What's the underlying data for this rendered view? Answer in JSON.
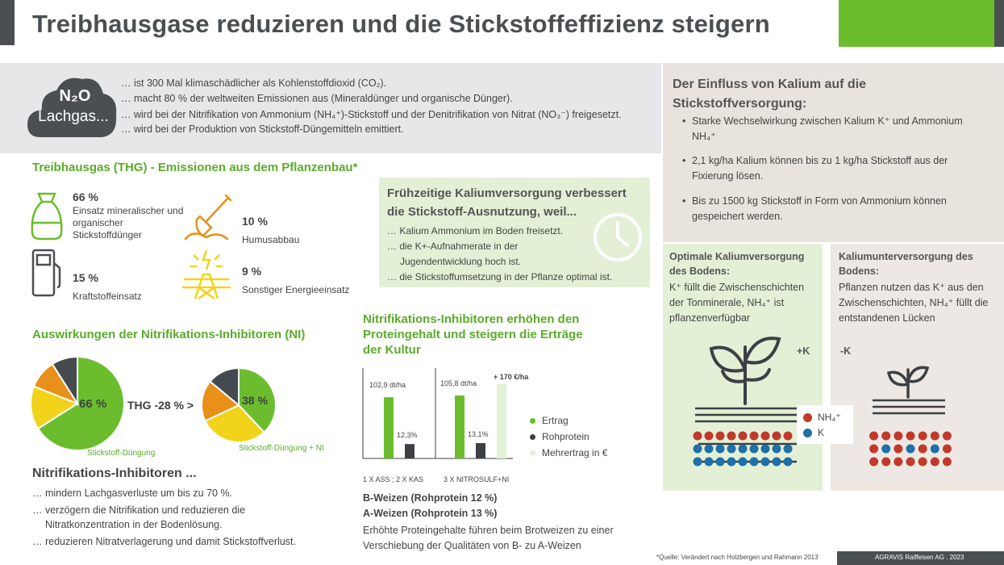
{
  "header": {
    "title": "Treibhausgase reduzieren und die Stickstoffeffizienz steigern",
    "accent_green": "#6bbd2e",
    "dark": "#4a4f52"
  },
  "n2o": {
    "formula": "N₂O",
    "name": "Lachgas...",
    "lines": [
      "… ist 300 Mal klimaschädlicher als Kohlenstoffdioxid (CO₂).",
      "… macht 80 % der weltweiten Emissionen aus (Mineraldünger und organische Dünger).",
      "… wird bei der Nitrifikation von Ammonium (NH₄⁺)-Stickstoff und der Denitrifikation von Nitrat (NO₃⁻) freigesetzt.",
      "… wird bei der Produktion von Stickstoff-Düngemitteln emittiert."
    ]
  },
  "thg": {
    "heading": "Treibhausgas (THG) - Emissionen aus dem Pflanzenbau*",
    "items": [
      {
        "pct": "66 %",
        "label": "Einsatz mineralischer und organischer Stickstoffdünger",
        "icon": "fertilizer-bag-icon"
      },
      {
        "pct": "10 %",
        "label": "Humusabbau",
        "icon": "shovel-icon"
      },
      {
        "pct": "15 %",
        "label": "Kraftstoffeinsatz",
        "icon": "fuel-pump-icon"
      },
      {
        "pct": "9 %",
        "label": "Sonstiger Energieeinsatz",
        "icon": "power-pylon-icon"
      }
    ]
  },
  "fruh": {
    "title": "Frühzeitige Kaliumversorgung verbessert die Stickstoff-Ausnutzung, weil...",
    "lines": [
      "… Kalium Ammonium im Boden freisetzt.",
      "… die K+-Aufnahmerate in der",
      "Jugendentwicklung hoch ist.",
      "… die Stickstoffumsetzung in der Pflanze optimal ist."
    ],
    "icon": "clock-icon"
  },
  "kalium": {
    "title": "Der Einfluss von Kalium auf die Stickstoffversorgung:",
    "bullets": [
      "Starke Wechselwirkung zwischen Kalium K⁺ und Ammonium NH₄⁺",
      "2,1 kg/ha Kalium können bis zu 1 kg/ha Stickstoff aus der Fixierung lösen.",
      "Bis zu 1500 kg Stickstoff in Form von Ammonium können gespeichert werden."
    ],
    "optimal": {
      "title": "Optimale Kaliumversorgung des Bodens:",
      "text": "K⁺ füllt die Zwischenschichten der Tonminerale, NH₄⁺ ist pflanzenverfügbar",
      "marker": "+K"
    },
    "unter": {
      "title": "Kaliumunterversorgung des Bodens:",
      "text": "Pflanzen nutzen das K⁺ aus den Zwischenschichten, NH₄⁺ füllt die entstandenen Lücken",
      "marker": "-K"
    },
    "legend": [
      {
        "label": "NH₄⁺",
        "color": "#c0392b"
      },
      {
        "label": "K",
        "color": "#1f6fa8"
      }
    ]
  },
  "ni": {
    "heading": "Auswirkungen der Nitrifikations-Inhibitoren (NI)",
    "pie1": {
      "label": "Stickstoff-Düngung",
      "highlight": "66 %"
    },
    "pie2": {
      "label": "Stickstoff-Düngung + NI",
      "highlight": "38 %"
    },
    "thg_change": "THG -28 % >",
    "list_title": "Nitrifikations-Inhibitoren ...",
    "list": [
      "… mindern Lachgasverluste um bis zu 70 %.",
      "… verzögern die Nitrifikation und reduzieren die",
      "Nitratkonzentration in der Bodenlösung.",
      "… reduzieren Nitratverlagerung und damit Stickstoffverlust."
    ]
  },
  "chart_data": [
    {
      "type": "pie",
      "title": "",
      "slices": [
        {
          "label": "Stickstoffdünger",
          "value": 66,
          "color": "#6bbd2e"
        },
        {
          "label": "Kraftstoffeinsatz",
          "value": 15,
          "color": "#f2d31b"
        },
        {
          "label": "Humusabbau",
          "value": 10,
          "color": "#e8901a"
        },
        {
          "label": "Sonstiger Energieeinsatz",
          "value": 9,
          "color": "#444a4f"
        }
      ]
    },
    {
      "type": "pie",
      "title": "",
      "slices": [
        {
          "label": "Stickstoffdünger",
          "value": 38,
          "color": "#6bbd2e"
        },
        {
          "label": "Kraftstoffeinsatz",
          "value": 30,
          "color": "#f2d31b"
        },
        {
          "label": "Humusabbau",
          "value": 18,
          "color": "#e8901a"
        },
        {
          "label": "Sonstiger Energieeinsatz",
          "value": 14,
          "color": "#444a4f"
        }
      ]
    },
    {
      "type": "bar",
      "title": "Nitrifikations-Inhibitoren erhöhen den Proteingehalt und steigern die Erträge der Kultur",
      "categories": [
        "1 X ASS ; 2 X KAS",
        "3 X NITROSULF+NI"
      ],
      "series": [
        {
          "name": "Ertrag",
          "values": [
            102.9,
            105.8
          ],
          "labels": [
            "102,9 dt/ha",
            "105,8 dt/ha"
          ],
          "color": "#6bbd2e"
        },
        {
          "name": "Rohprotein",
          "values": [
            12.3,
            13.1
          ],
          "labels": [
            "12,3%",
            "13,1%"
          ],
          "color": "#3c4044"
        },
        {
          "name": "Mehrertrag in €",
          "values": [
            null,
            170
          ],
          "labels": [
            "",
            "+ 170 €/ha"
          ],
          "color": "#e4f0d6"
        }
      ]
    }
  ],
  "chart_notes": {
    "grade1": "B-Weizen (Rohprotein 12 %)",
    "grade2": "A-Weizen (Rohprotein 13 %)",
    "caption": "Erhöhte Proteingehalte führen beim Brotweizen zu einer Verschiebung der Qualitäten von B- zu A-Weizen"
  },
  "footer": {
    "source": "*Quelle: Verändert nach Holzbergen und Rahmann 2013",
    "brand": "AGRAVIS Raiffeisen AG  .  2023"
  }
}
